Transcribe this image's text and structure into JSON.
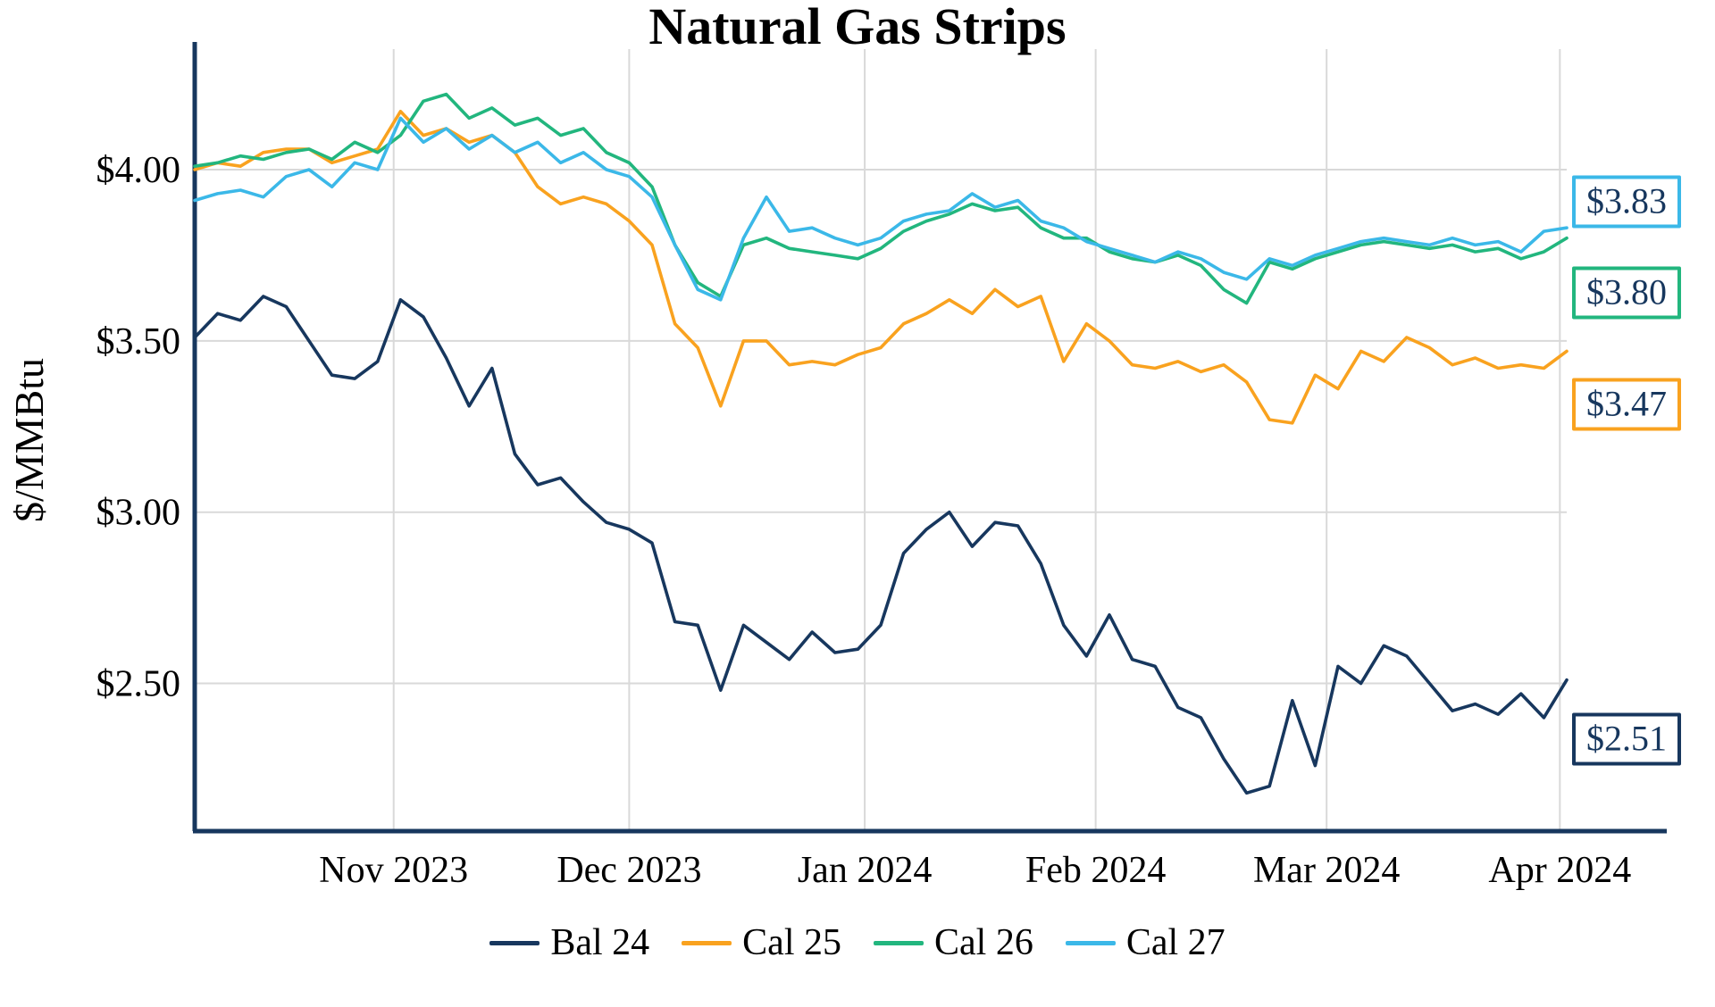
{
  "chart_data": {
    "type": "line",
    "title": "Natural Gas Strips",
    "ylabel": "$/MMBtu",
    "grid": true,
    "legend_position": "bottom",
    "x_count": 61,
    "ylim": [
      2.07,
      4.35
    ],
    "x_ticks": [
      {
        "pos": 8.7,
        "label": "Nov 2023"
      },
      {
        "pos": 19.0,
        "label": "Dec 2023"
      },
      {
        "pos": 29.3,
        "label": "Jan 2024"
      },
      {
        "pos": 39.4,
        "label": "Feb 2024"
      },
      {
        "pos": 49.5,
        "label": "Mar 2024"
      },
      {
        "pos": 59.7,
        "label": "Apr 2024"
      }
    ],
    "y_ticks": [
      {
        "value": 2.5,
        "label": "$2.50"
      },
      {
        "value": 3.0,
        "label": "$3.00"
      },
      {
        "value": 3.5,
        "label": "$3.50"
      },
      {
        "value": 4.0,
        "label": "$4.00"
      }
    ],
    "axis_color": "#17375e",
    "grid_color": "#d9d9d9",
    "series": [
      {
        "name": "Bal 24",
        "color": "#17375e",
        "end_label": "$2.51",
        "values": [
          3.51,
          3.58,
          3.56,
          3.63,
          3.6,
          3.5,
          3.4,
          3.39,
          3.44,
          3.62,
          3.57,
          3.45,
          3.31,
          3.42,
          3.17,
          3.08,
          3.1,
          3.03,
          2.97,
          2.95,
          2.91,
          2.68,
          2.67,
          2.48,
          2.67,
          2.62,
          2.57,
          2.65,
          2.59,
          2.6,
          2.67,
          2.88,
          2.95,
          3.0,
          2.9,
          2.97,
          2.96,
          2.85,
          2.67,
          2.58,
          2.7,
          2.57,
          2.55,
          2.43,
          2.4,
          2.28,
          2.18,
          2.2,
          2.45,
          2.26,
          2.55,
          2.5,
          2.61,
          2.58,
          2.5,
          2.42,
          2.44,
          2.41,
          2.47,
          2.4,
          2.51
        ]
      },
      {
        "name": "Cal 25",
        "color": "#f9a21f",
        "end_label": "$3.47",
        "values": [
          4.0,
          4.02,
          4.01,
          4.05,
          4.06,
          4.06,
          4.02,
          4.04,
          4.06,
          4.17,
          4.1,
          4.12,
          4.08,
          4.1,
          4.05,
          3.95,
          3.9,
          3.92,
          3.9,
          3.85,
          3.78,
          3.55,
          3.48,
          3.31,
          3.5,
          3.5,
          3.43,
          3.44,
          3.43,
          3.46,
          3.48,
          3.55,
          3.58,
          3.62,
          3.58,
          3.65,
          3.6,
          3.63,
          3.44,
          3.55,
          3.5,
          3.43,
          3.42,
          3.44,
          3.41,
          3.43,
          3.38,
          3.27,
          3.26,
          3.4,
          3.36,
          3.47,
          3.44,
          3.51,
          3.48,
          3.43,
          3.45,
          3.42,
          3.43,
          3.42,
          3.47
        ]
      },
      {
        "name": "Cal 26",
        "color": "#22b67e",
        "end_label": "$3.80",
        "values": [
          4.01,
          4.02,
          4.04,
          4.03,
          4.05,
          4.06,
          4.03,
          4.08,
          4.05,
          4.1,
          4.2,
          4.22,
          4.15,
          4.18,
          4.13,
          4.15,
          4.1,
          4.12,
          4.05,
          4.02,
          3.95,
          3.78,
          3.67,
          3.63,
          3.78,
          3.8,
          3.77,
          3.76,
          3.75,
          3.74,
          3.77,
          3.82,
          3.85,
          3.87,
          3.9,
          3.88,
          3.89,
          3.83,
          3.8,
          3.8,
          3.76,
          3.74,
          3.73,
          3.75,
          3.72,
          3.65,
          3.61,
          3.73,
          3.71,
          3.74,
          3.76,
          3.78,
          3.79,
          3.78,
          3.77,
          3.78,
          3.76,
          3.77,
          3.74,
          3.76,
          3.8
        ]
      },
      {
        "name": "Cal 27",
        "color": "#3bb8e8",
        "end_label": "$3.83",
        "values": [
          3.91,
          3.93,
          3.94,
          3.92,
          3.98,
          4.0,
          3.95,
          4.02,
          4.0,
          4.15,
          4.08,
          4.12,
          4.06,
          4.1,
          4.05,
          4.08,
          4.02,
          4.05,
          4.0,
          3.98,
          3.92,
          3.78,
          3.65,
          3.62,
          3.8,
          3.92,
          3.82,
          3.83,
          3.8,
          3.78,
          3.8,
          3.85,
          3.87,
          3.88,
          3.93,
          3.89,
          3.91,
          3.85,
          3.83,
          3.79,
          3.77,
          3.75,
          3.73,
          3.76,
          3.74,
          3.7,
          3.68,
          3.74,
          3.72,
          3.75,
          3.77,
          3.79,
          3.8,
          3.79,
          3.78,
          3.8,
          3.78,
          3.79,
          3.76,
          3.82,
          3.83
        ]
      }
    ]
  }
}
